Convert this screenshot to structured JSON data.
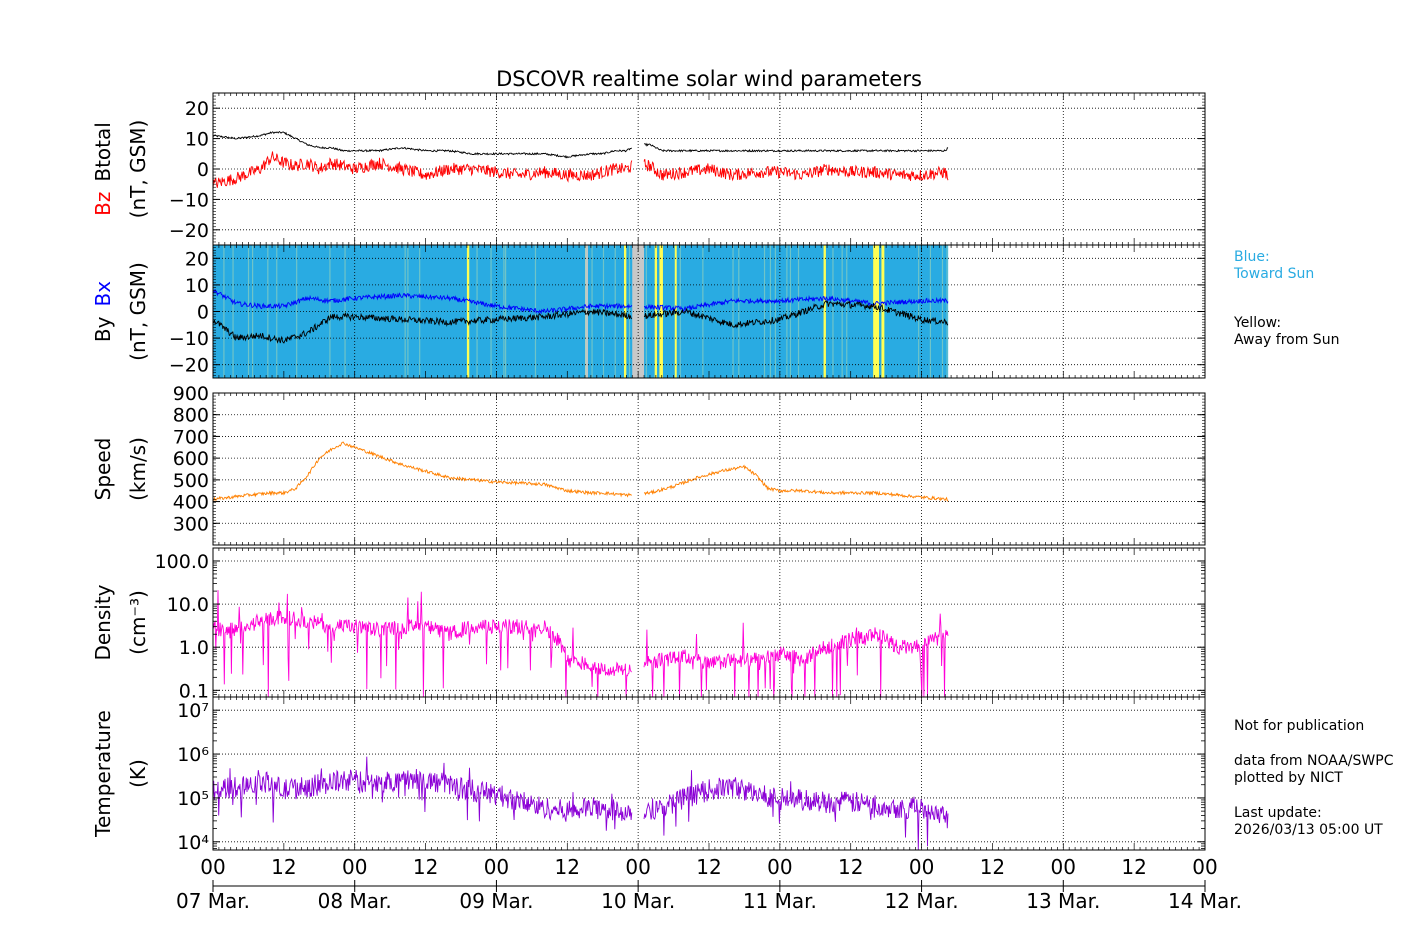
{
  "title": "DSCOVR realtime solar wind parameters",
  "colors": {
    "bz": "#ff0000",
    "btotal": "#000000",
    "bx": "#0000ff",
    "by": "#000000",
    "toward": "#29abe2",
    "away": "#ffff55",
    "gap": "#c8c8c8",
    "speed": "#ff8000",
    "density": "#ff00d8",
    "temperature": "#8b00d6",
    "grid": "#000000"
  },
  "legend": {
    "blue_title": "Blue:",
    "blue_text": "Toward Sun",
    "yellow_title": "Yellow:",
    "yellow_text": "Away from Sun"
  },
  "notes": {
    "line1": "Not for publication",
    "line2": "data from NOAA/SWPC",
    "line3": "plotted by NICT",
    "line4": "Last update:",
    "line5": "2026/03/13 05:00 UT"
  },
  "chart_data": [
    {
      "type": "line",
      "id": "mag",
      "ylabel_series": [
        "Bz",
        "Btotal"
      ],
      "ylabel_unit": "(nT, GSM)",
      "ylim": [
        -25,
        25
      ],
      "yticks": [
        -20,
        -10,
        0,
        10,
        20
      ],
      "ytick_labels": [
        "−20",
        "−10",
        "0",
        "10",
        "20"
      ],
      "series": [
        {
          "name": "Btotal",
          "x": [
            0,
            4,
            8,
            10,
            12,
            14,
            16,
            18,
            20,
            22,
            24,
            28,
            32,
            36,
            40,
            44,
            48,
            52,
            56,
            60,
            64,
            66,
            68,
            70,
            72,
            74,
            76,
            80,
            84,
            88,
            92,
            96,
            100,
            104,
            108,
            112,
            116,
            120,
            124,
            124.5
          ],
          "values": [
            11,
            10,
            11,
            12,
            12,
            10,
            8,
            7,
            7,
            6,
            6,
            6,
            7,
            6,
            6,
            5,
            5,
            5,
            5,
            4,
            5,
            5,
            6,
            6,
            8,
            8,
            6,
            6,
            6,
            6,
            6,
            6,
            6,
            6,
            6,
            6,
            6,
            6,
            6,
            7
          ]
        },
        {
          "name": "Bz",
          "x": [
            0,
            4,
            8,
            10,
            12,
            14,
            16,
            18,
            20,
            22,
            24,
            28,
            32,
            36,
            40,
            44,
            48,
            52,
            56,
            60,
            64,
            66,
            68,
            70,
            72,
            74,
            76,
            80,
            84,
            88,
            92,
            96,
            100,
            104,
            108,
            112,
            116,
            120,
            124,
            124.5
          ],
          "values": [
            -5,
            -3,
            0,
            4,
            2,
            1,
            2,
            0,
            2,
            1,
            0,
            2,
            0,
            -2,
            0,
            0,
            -1,
            -2,
            -1,
            -2,
            -2,
            -1,
            0,
            0,
            2,
            1,
            -2,
            -1,
            0,
            -2,
            -1,
            -1,
            -2,
            0,
            -1,
            -1,
            -2,
            -2,
            -1,
            -3
          ]
        }
      ]
    },
    {
      "type": "line",
      "id": "imf",
      "ylabel_series": [
        "By",
        "Bx"
      ],
      "ylabel_unit": "(nT, GSM)",
      "ylim": [
        -25,
        25
      ],
      "yticks": [
        -20,
        -10,
        0,
        10,
        20
      ],
      "ytick_labels": [
        "−20",
        "−10",
        "0",
        "10",
        "20"
      ],
      "background": "Blue: Toward Sun, Yellow: Away from Sun",
      "away_intervals_hours": [
        [
          43,
          43.4
        ],
        [
          69.6,
          70
        ],
        [
          74.8,
          75.2
        ],
        [
          75.6,
          76.2
        ],
        [
          78.2,
          78.5
        ],
        [
          103.4,
          103.8
        ],
        [
          111.8,
          112.8
        ],
        [
          113.2,
          113.7
        ]
      ],
      "gap_intervals_hours": [
        [
          63,
          63.5
        ],
        [
          71,
          73
        ]
      ],
      "series": [
        {
          "name": "Bx",
          "x": [
            0,
            4,
            8,
            12,
            16,
            20,
            24,
            32,
            40,
            48,
            56,
            64,
            72,
            80,
            88,
            96,
            104,
            112,
            120,
            124.5
          ],
          "values": [
            8,
            3,
            2,
            2,
            5,
            4,
            5,
            6,
            5,
            2,
            0,
            2,
            2,
            1,
            4,
            4,
            5,
            3,
            4,
            4
          ]
        },
        {
          "name": "By",
          "x": [
            0,
            4,
            8,
            12,
            16,
            20,
            24,
            32,
            40,
            48,
            56,
            64,
            72,
            80,
            88,
            96,
            104,
            112,
            120,
            124.5
          ],
          "values": [
            -3,
            -10,
            -9,
            -11,
            -8,
            -2,
            -2,
            -3,
            -4,
            -3,
            -2,
            0,
            -2,
            0,
            -5,
            -3,
            3,
            2,
            -3,
            -4
          ]
        }
      ]
    },
    {
      "type": "line",
      "id": "speed",
      "ylabel_series": [
        "Speed"
      ],
      "ylabel_unit": "(km/s)",
      "ylim": [
        200,
        900
      ],
      "yticks": [
        300,
        400,
        500,
        600,
        700,
        800,
        900
      ],
      "ytick_labels": [
        "300",
        "400",
        "500",
        "600",
        "700",
        "800",
        "900"
      ],
      "series": [
        {
          "name": "Speed",
          "x": [
            0,
            6,
            10,
            12,
            14,
            16,
            18,
            20,
            22,
            24,
            28,
            32,
            36,
            40,
            48,
            56,
            60,
            64,
            66,
            70,
            74,
            78,
            82,
            86,
            90,
            92,
            94,
            96,
            100,
            104,
            108,
            112,
            116,
            120,
            124.5
          ],
          "values": [
            410,
            430,
            440,
            440,
            460,
            520,
            600,
            640,
            670,
            650,
            610,
            570,
            540,
            510,
            490,
            480,
            450,
            440,
            440,
            430,
            440,
            470,
            510,
            540,
            560,
            520,
            460,
            450,
            450,
            440,
            440,
            440,
            430,
            420,
            410
          ]
        }
      ]
    },
    {
      "type": "line",
      "id": "density",
      "ylabel_series": [
        "Density"
      ],
      "ylabel_unit": "(cm⁻³)",
      "yscale": "log",
      "ylim": [
        0.07,
        200
      ],
      "yticks": [
        0.1,
        1.0,
        10.0,
        100.0
      ],
      "ytick_labels": [
        "0.1",
        "1.0",
        "10.0",
        "100.0"
      ],
      "series": [
        {
          "name": "Density",
          "x": [
            0,
            4,
            8,
            12,
            16,
            20,
            24,
            28,
            32,
            36,
            40,
            44,
            48,
            52,
            56,
            60,
            64,
            66,
            70,
            76,
            80,
            84,
            88,
            92,
            96,
            100,
            104,
            108,
            112,
            116,
            120,
            124.5
          ],
          "values": [
            3,
            2.5,
            4,
            5,
            4,
            3,
            3,
            2.5,
            3,
            3,
            2,
            3,
            3,
            3,
            3,
            0.5,
            0.4,
            0.3,
            0.3,
            0.5,
            0.6,
            0.4,
            0.5,
            0.5,
            0.7,
            0.5,
            1,
            1.5,
            2,
            1,
            1,
            2
          ]
        }
      ]
    },
    {
      "type": "line",
      "id": "temperature",
      "ylabel_series": [
        "Temperature"
      ],
      "ylabel_unit": "(K)",
      "yscale": "log",
      "ylim": [
        6500,
        20000000
      ],
      "yticks": [
        10000,
        100000,
        1000000,
        10000000
      ],
      "ytick_labels": [
        "10⁴",
        "10⁵",
        "10⁶",
        "10⁷"
      ],
      "series": [
        {
          "name": "Temperature",
          "x": [
            0,
            4,
            8,
            12,
            16,
            20,
            24,
            28,
            32,
            36,
            40,
            44,
            48,
            52,
            56,
            60,
            64,
            66,
            70,
            76,
            80,
            84,
            88,
            92,
            96,
            100,
            104,
            108,
            112,
            116,
            120,
            124.5
          ],
          "values": [
            150000,
            180000,
            250000,
            150000,
            180000,
            220000,
            250000,
            200000,
            280000,
            250000,
            200000,
            150000,
            120000,
            80000,
            60000,
            50000,
            60000,
            55000,
            50000,
            60000,
            100000,
            150000,
            180000,
            120000,
            100000,
            90000,
            80000,
            80000,
            70000,
            60000,
            60000,
            40000
          ]
        }
      ]
    }
  ],
  "x_axis": {
    "range_hours": [
      0,
      168
    ],
    "hour_tick_labels": [
      "00",
      "12",
      "00",
      "12",
      "00",
      "12",
      "00",
      "12",
      "00",
      "12",
      "00",
      "12",
      "00",
      "12",
      "00"
    ],
    "date_labels": [
      "07 Mar.",
      "08 Mar.",
      "09 Mar.",
      "10 Mar.",
      "11 Mar.",
      "12 Mar.",
      "13 Mar.",
      "14 Mar."
    ],
    "data_gap_hours": [
      [
        71,
        73
      ]
    ],
    "data_end_hours": 124.5
  }
}
